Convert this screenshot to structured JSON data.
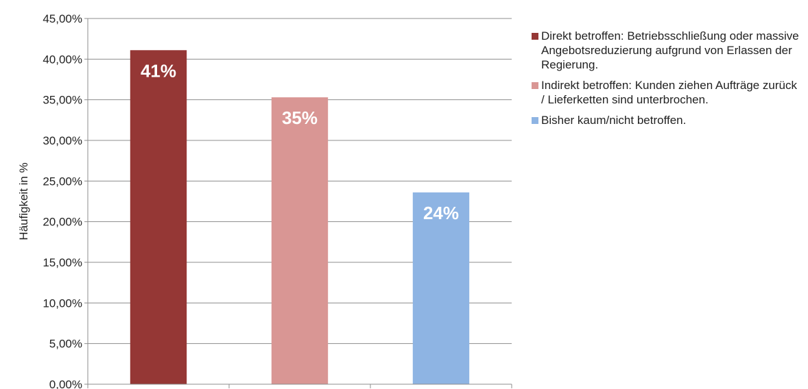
{
  "chart_data": {
    "type": "bar",
    "title": "",
    "xlabel": "",
    "ylabel": "Häufigkeit in %",
    "ylim": [
      0,
      45
    ],
    "yticks": [
      {
        "value": 0,
        "label": "0,00%"
      },
      {
        "value": 5,
        "label": "5,00%"
      },
      {
        "value": 10,
        "label": "10,00%"
      },
      {
        "value": 15,
        "label": "15,00%"
      },
      {
        "value": 20,
        "label": "20,00%"
      },
      {
        "value": 25,
        "label": "25,00%"
      },
      {
        "value": 30,
        "label": "30,00%"
      },
      {
        "value": 35,
        "label": "35,00%"
      },
      {
        "value": 40,
        "label": "40,00%"
      },
      {
        "value": 45,
        "label": "45,00%"
      }
    ],
    "grid": true,
    "legend_position": "right",
    "series": [
      {
        "name": "Direkt betroffen: Betriebsschließung oder massive Angebotsreduzierung aufgrund von Erlassen der Regierung.",
        "value": 41.1,
        "data_label": "41%",
        "color": "#953735"
      },
      {
        "name": "Indirekt betroffen: Kunden ziehen Aufträge zurück / Lieferketten sind unterbrochen.",
        "value": 35.3,
        "data_label": "35%",
        "color": "#D99694"
      },
      {
        "name": "Bisher kaum/nicht betroffen.",
        "value": 23.6,
        "data_label": "24%",
        "color": "#8EB4E3"
      }
    ]
  }
}
